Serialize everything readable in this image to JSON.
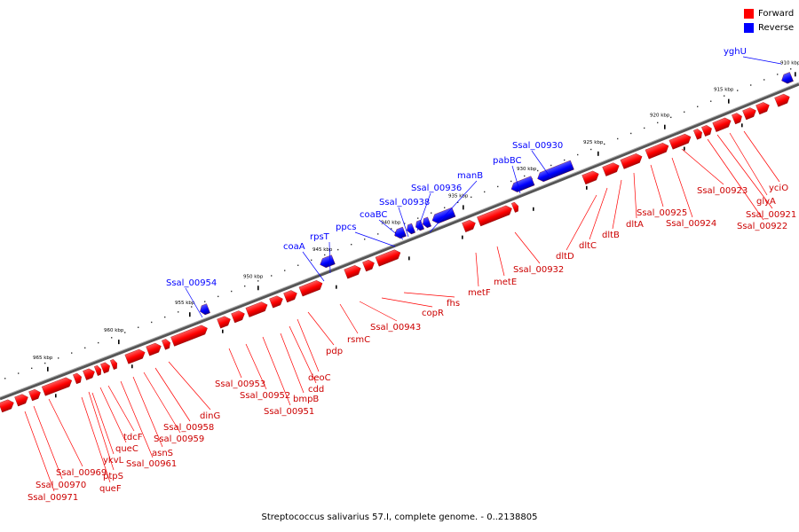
{
  "legend": {
    "forward": {
      "label": "Forward",
      "color": "#ff0000"
    },
    "reverse": {
      "label": "Reverse",
      "color": "#0000ff"
    }
  },
  "caption": "Streptococcus salivarius 57.I, complete genome. - 0..2138805",
  "ticks": [
    "910 kbp",
    "915 kbp",
    "920 kbp",
    "925 kbp",
    "930 kbp",
    "935 kbp",
    "940 kbp",
    "945 kbp",
    "950 kbp",
    "955 kbp",
    "960 kbp",
    "965 kbp"
  ],
  "reverse_labels": [
    "yghU",
    "Ssal_00930",
    "pabBC",
    "manB",
    "Ssal_00936",
    "Ssal_00938",
    "coaBC",
    "ppcs",
    "rpsT",
    "coaA",
    "Ssal_00954"
  ],
  "forward_labels": [
    "yciO",
    "glyA",
    "Ssal_00921",
    "Ssal_00922",
    "Ssal_00923",
    "Ssal_00924",
    "Ssal_00925",
    "dltA",
    "dltB",
    "dltC",
    "dltD",
    "Ssal_00932",
    "metE",
    "metF",
    "fhs",
    "copR",
    "Ssal_00943",
    "rsmC",
    "pdp",
    "deoC",
    "cdd",
    "bmpB",
    "Ssal_00951",
    "Ssal_00952",
    "Ssal_00953",
    "dinG",
    "Ssal_00958",
    "Ssal_00959",
    "asnS",
    "Ssal_00961",
    "tdcF",
    "queC",
    "ptpS",
    "ykvL",
    "queF",
    "Ssal_00969",
    "Ssal_00970",
    "Ssal_00971"
  ]
}
